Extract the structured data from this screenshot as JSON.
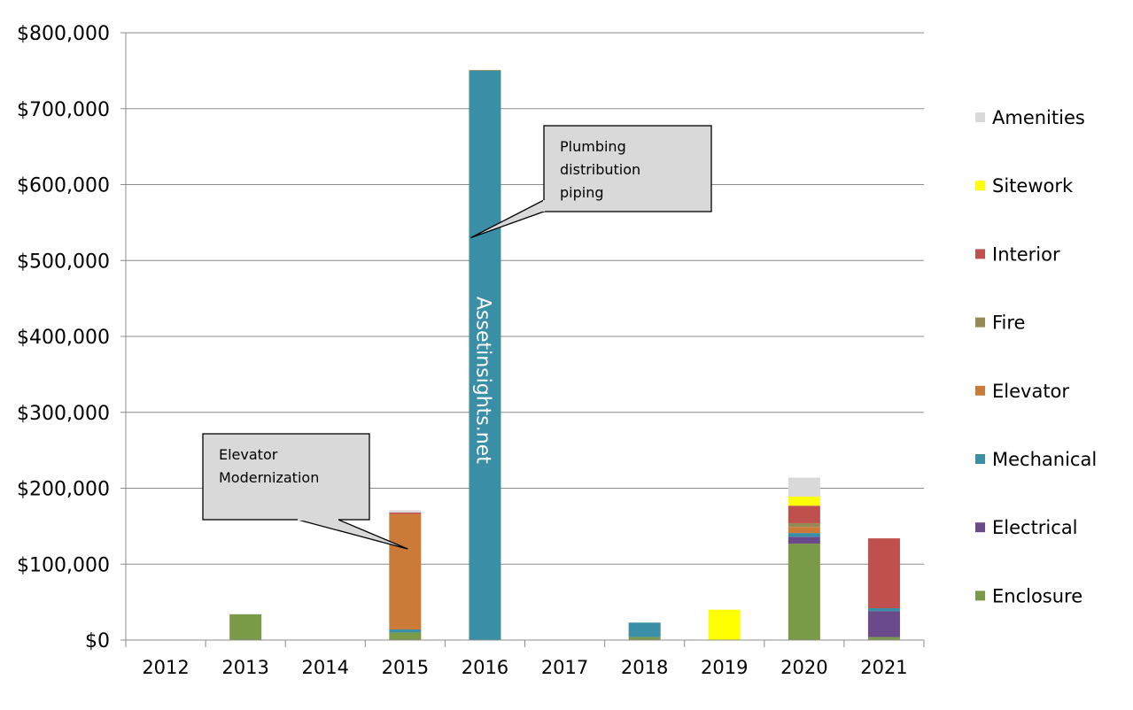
{
  "chart_data": {
    "type": "bar",
    "stacked": true,
    "categories": [
      "2012",
      "2013",
      "2014",
      "2015",
      "2016",
      "2017",
      "2018",
      "2019",
      "2020",
      "2021"
    ],
    "series": [
      {
        "name": "Enclosure",
        "color": "#7a9a48",
        "values": [
          0,
          34000,
          0,
          10000,
          0,
          0,
          4000,
          0,
          127000,
          4000
        ]
      },
      {
        "name": "Electrical",
        "color": "#6a4a8a",
        "values": [
          0,
          0,
          0,
          0,
          0,
          0,
          0,
          0,
          9000,
          34000
        ]
      },
      {
        "name": "Mechanical",
        "color": "#3a8ea6",
        "values": [
          0,
          0,
          0,
          4000,
          750000,
          0,
          19000,
          0,
          5000,
          4000
        ]
      },
      {
        "name": "Elevator",
        "color": "#cc7a38",
        "values": [
          0,
          0,
          0,
          152000,
          0,
          0,
          0,
          0,
          8000,
          0
        ]
      },
      {
        "name": "Fire",
        "color": "#958a56",
        "values": [
          0,
          0,
          0,
          0,
          1000,
          0,
          0,
          0,
          5000,
          0
        ]
      },
      {
        "name": "Interior",
        "color": "#c0504d",
        "values": [
          0,
          0,
          0,
          2000,
          0,
          0,
          0,
          0,
          23000,
          92000
        ]
      },
      {
        "name": "Sitework",
        "color": "#ffff00",
        "values": [
          0,
          0,
          0,
          0,
          0,
          0,
          0,
          40000,
          12000,
          0
        ]
      },
      {
        "name": "Amenities",
        "color": "#d9d9d9",
        "values": [
          0,
          0,
          0,
          3000,
          0,
          0,
          0,
          0,
          25000,
          0
        ]
      }
    ],
    "ylim": [
      0,
      800000
    ],
    "yticks": [
      0,
      100000,
      200000,
      300000,
      400000,
      500000,
      600000,
      700000,
      800000
    ],
    "ytick_labels": [
      "$0",
      "$100,000",
      "$200,000",
      "$300,000",
      "$400,000",
      "$500,000",
      "$600,000",
      "$700,000",
      "$800,000"
    ],
    "grid": true,
    "legend_position": "right",
    "legend_order": [
      "Amenities",
      "Sitework",
      "Interior",
      "Fire",
      "Elevator",
      "Mechanical",
      "Electrical",
      "Enclosure"
    ],
    "annotations": [
      {
        "lines": [
          "Elevator",
          "Modernization"
        ],
        "target_category": "2015",
        "target_value": 120000
      },
      {
        "lines": [
          "Plumbing",
          "distribution",
          "piping"
        ],
        "target_category": "2016",
        "target_value": 530000
      }
    ],
    "watermark": "Assetinsights.net"
  }
}
